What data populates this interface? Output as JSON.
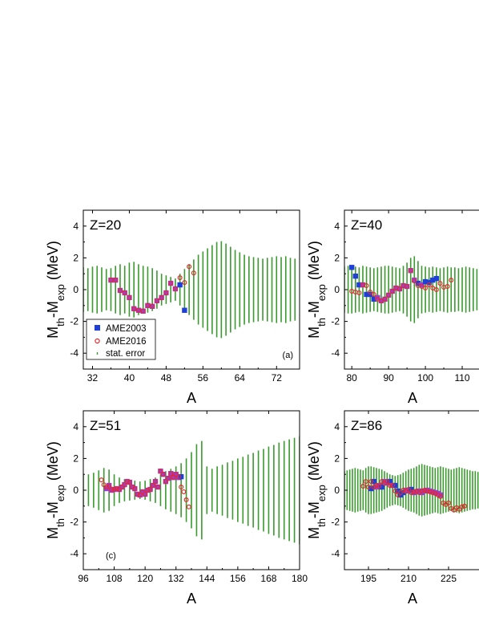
{
  "colors": {
    "ame2003": "#1f3fd6",
    "ame2016": "#e8262b",
    "stat_error": "#3a9a2e",
    "overlap_square": "#9b3fd0"
  },
  "legend": {
    "ame2003": "AME2003",
    "ame2016": "AME2016",
    "stat_error": "stat. error"
  },
  "chart_data": [
    {
      "type": "scatter",
      "panel_tag": "(a)",
      "z_label": "Z=20",
      "xlabel": "A",
      "ylabel": "M_th-M_exp (MeV)",
      "xlim": [
        30,
        77
      ],
      "ylim": [
        -5,
        5
      ],
      "xticks": [
        32,
        40,
        48,
        56,
        64,
        72
      ],
      "yticks": [
        -4,
        -2,
        0,
        2,
        4
      ],
      "series": [
        {
          "name": "AME2003",
          "x": [
            36,
            37,
            38,
            39,
            40,
            41,
            42,
            43,
            44,
            45,
            46,
            47,
            48,
            49,
            50,
            51,
            52
          ],
          "y": [
            0.6,
            0.6,
            -0.05,
            -0.2,
            -0.5,
            -1.2,
            -1.3,
            -1.35,
            -1.0,
            -1.05,
            -0.7,
            -0.5,
            -0.2,
            0.4,
            0.05,
            0.3,
            -1.3
          ]
        },
        {
          "name": "AME2016",
          "x": [
            36,
            37,
            38,
            39,
            40,
            41,
            42,
            43,
            44,
            45,
            46,
            47,
            48,
            49,
            50,
            51,
            52,
            53,
            54
          ],
          "y": [
            0.6,
            0.6,
            -0.05,
            -0.2,
            -0.5,
            -1.2,
            -1.3,
            -1.35,
            -1.0,
            -1.05,
            -0.7,
            -0.5,
            -0.2,
            0.4,
            0.05,
            0.75,
            0.45,
            1.45,
            1.05
          ]
        },
        {
          "name": "stat. error",
          "x": [
            30,
            31,
            32,
            33,
            34,
            35,
            36,
            37,
            38,
            39,
            40,
            41,
            42,
            43,
            44,
            45,
            46,
            47,
            48,
            49,
            50,
            51,
            52,
            53,
            54,
            55,
            56,
            57,
            58,
            59,
            60,
            61,
            62,
            63,
            64,
            65,
            66,
            67,
            68,
            69,
            70,
            71,
            72,
            73,
            74,
            75,
            76
          ],
          "y": [
            1.4,
            1.35,
            1.45,
            1.5,
            1.4,
            1.3,
            1.35,
            1.5,
            1.6,
            1.5,
            1.7,
            1.75,
            1.6,
            1.5,
            1.45,
            1.35,
            1.2,
            1.0,
            0.9,
            0.8,
            0.7,
            1.0,
            1.3,
            1.6,
            1.9,
            2.2,
            2.4,
            2.6,
            2.8,
            3.0,
            3.05,
            2.9,
            2.7,
            2.5,
            2.35,
            2.2,
            2.1,
            2.05,
            2.0,
            1.95,
            2.0,
            2.05,
            2.1,
            2.05,
            2.1,
            2.0,
            1.95
          ]
        }
      ]
    },
    {
      "type": "scatter",
      "panel_tag": "",
      "z_label": "Z=40",
      "xlabel": "A",
      "ylabel": "M_th-M_exp (MeV)",
      "xlim": [
        78,
        115
      ],
      "ylim": [
        -5,
        5
      ],
      "xticks": [
        80,
        90,
        100,
        110
      ],
      "yticks": [
        -4,
        -2,
        0,
        2,
        4
      ],
      "series": [
        {
          "name": "AME2003",
          "x": [
            80,
            81,
            82,
            83,
            84,
            85,
            86,
            87,
            88,
            89,
            90,
            91,
            92,
            93,
            94,
            95,
            96,
            97,
            98,
            99,
            100,
            101,
            102,
            103
          ],
          "y": [
            1.4,
            0.85,
            0.3,
            0.3,
            -0.3,
            -0.3,
            -0.6,
            -0.5,
            -0.7,
            -0.6,
            -0.35,
            -0.1,
            0.1,
            0.05,
            0.25,
            0.2,
            1.2,
            0.6,
            0.4,
            0.3,
            0.5,
            0.45,
            0.6,
            0.7
          ]
        },
        {
          "name": "AME2016",
          "x": [
            80,
            81,
            82,
            83,
            84,
            85,
            86,
            87,
            88,
            89,
            90,
            91,
            92,
            93,
            94,
            95,
            96,
            97,
            98,
            99,
            100,
            101,
            102,
            103,
            104,
            105,
            106,
            107
          ],
          "y": [
            -0.1,
            -0.15,
            -0.2,
            0.3,
            0.25,
            -0.15,
            -0.3,
            -0.6,
            -0.7,
            -0.6,
            -0.35,
            -0.1,
            0.1,
            0.05,
            0.25,
            0.2,
            1.2,
            0.55,
            0.25,
            0.2,
            0.1,
            0.3,
            0.1,
            0.0,
            0.4,
            0.15,
            0.2,
            0.6
          ]
        },
        {
          "name": "stat. error",
          "x": [
            78,
            79,
            80,
            81,
            82,
            83,
            84,
            85,
            86,
            87,
            88,
            89,
            90,
            91,
            92,
            93,
            94,
            95,
            96,
            97,
            98,
            99,
            100,
            101,
            102,
            103,
            104,
            105,
            106,
            107,
            108,
            109,
            110,
            111,
            112,
            113,
            114,
            115
          ],
          "y": [
            1.45,
            1.5,
            1.5,
            1.45,
            1.4,
            1.5,
            1.45,
            1.4,
            1.35,
            1.4,
            1.45,
            1.5,
            1.5,
            1.45,
            1.4,
            1.35,
            1.5,
            1.7,
            2.0,
            2.1,
            1.8,
            1.5,
            1.45,
            1.4,
            1.45,
            1.4,
            1.35,
            1.4,
            1.45,
            1.4,
            1.4,
            1.35,
            1.4,
            1.45,
            1.4,
            1.35,
            1.3,
            1.25
          ]
        }
      ]
    },
    {
      "type": "scatter",
      "panel_tag": "(c)",
      "z_label": "Z=51",
      "xlabel": "A",
      "ylabel": "M_th-M_exp (MeV)",
      "xlim": [
        96,
        180
      ],
      "ylim": [
        -5,
        5
      ],
      "xticks": [
        96,
        108,
        120,
        132,
        144,
        156,
        168,
        180
      ],
      "yticks": [
        -4,
        -2,
        0,
        2,
        4
      ],
      "series": [
        {
          "name": "AME2003",
          "x": [
            105,
            106,
            107,
            108,
            109,
            110,
            111,
            112,
            113,
            114,
            115,
            116,
            117,
            118,
            119,
            120,
            121,
            122,
            123,
            124,
            125,
            126,
            127,
            128,
            129,
            130,
            131,
            132,
            133,
            134
          ],
          "y": [
            0.1,
            0.3,
            0.0,
            0.05,
            0.1,
            0.05,
            0.2,
            0.35,
            0.55,
            0.5,
            0.2,
            0.1,
            -0.25,
            -0.3,
            -0.1,
            -0.25,
            0.0,
            0.05,
            0.3,
            0.55,
            0.2,
            1.2,
            1.0,
            0.55,
            0.75,
            1.05,
            0.8,
            1.0,
            0.8,
            0.85
          ]
        },
        {
          "name": "AME2016",
          "x": [
            103,
            104,
            105,
            106,
            107,
            108,
            109,
            110,
            111,
            112,
            113,
            114,
            115,
            116,
            117,
            118,
            119,
            120,
            121,
            122,
            123,
            124,
            125,
            126,
            127,
            128,
            129,
            130,
            131,
            132,
            133,
            134,
            135,
            136,
            137
          ],
          "y": [
            0.65,
            0.35,
            0.2,
            0.25,
            0.05,
            0.05,
            0.1,
            0.05,
            0.2,
            0.35,
            0.55,
            0.5,
            0.2,
            0.1,
            -0.25,
            -0.3,
            -0.1,
            -0.25,
            0.0,
            0.05,
            0.3,
            0.55,
            0.2,
            1.2,
            1.0,
            0.55,
            0.75,
            1.05,
            0.8,
            1.0,
            0.85,
            0.2,
            -0.1,
            -0.6,
            -1.05
          ]
        },
        {
          "name": "stat. error",
          "x": [
            96,
            98,
            100,
            102,
            104,
            106,
            108,
            110,
            112,
            114,
            116,
            118,
            120,
            122,
            124,
            126,
            128,
            130,
            132,
            134,
            136,
            138,
            140,
            142,
            144,
            146,
            148,
            150,
            152,
            154,
            156,
            158,
            160,
            162,
            164,
            166,
            168,
            170,
            172,
            174,
            176,
            178,
            180
          ],
          "y": [
            1.0,
            1.0,
            1.1,
            1.25,
            1.4,
            1.3,
            1.0,
            0.8,
            0.7,
            0.65,
            0.6,
            0.55,
            0.6,
            0.7,
            0.8,
            1.0,
            1.2,
            1.35,
            1.5,
            1.7,
            2.0,
            2.4,
            2.9,
            3.1,
            1.5,
            1.35,
            1.5,
            1.6,
            1.75,
            1.85,
            2.0,
            2.1,
            2.25,
            2.35,
            2.5,
            2.6,
            2.75,
            2.85,
            3.0,
            3.1,
            3.2,
            3.3,
            3.4
          ]
        }
      ]
    },
    {
      "type": "scatter",
      "panel_tag": "",
      "z_label": "Z=86",
      "xlabel": "A",
      "ylabel": "M_th-M_exp (MeV)",
      "xlim": [
        186,
        237
      ],
      "ylim": [
        -5,
        5
      ],
      "xticks": [
        195,
        210,
        225
      ],
      "yticks": [
        -4,
        -2,
        0,
        2,
        4
      ],
      "series": [
        {
          "name": "AME2003",
          "x": [
            196,
            197,
            198,
            199,
            200,
            201,
            202,
            203,
            204,
            205,
            206,
            207,
            208,
            209,
            210,
            211,
            212,
            213,
            214,
            215,
            216,
            217,
            218,
            219,
            220,
            221,
            222
          ],
          "y": [
            0.1,
            0.55,
            0.2,
            0.3,
            0.2,
            0.55,
            0.45,
            0.55,
            0.3,
            0.3,
            -0.05,
            -0.3,
            -0.15,
            0.0,
            -0.05,
            0.05,
            -0.15,
            -0.1,
            -0.05,
            -0.15,
            -0.05,
            0.0,
            -0.05,
            -0.1,
            -0.15,
            -0.2,
            -0.3
          ]
        },
        {
          "name": "AME2016",
          "x": [
            193,
            194,
            195,
            196,
            197,
            198,
            199,
            200,
            201,
            202,
            203,
            204,
            205,
            206,
            207,
            208,
            209,
            210,
            211,
            212,
            213,
            214,
            215,
            216,
            217,
            218,
            219,
            220,
            221,
            222,
            223,
            224,
            225,
            226,
            227,
            228,
            229,
            230,
            231
          ],
          "y": [
            0.25,
            0.55,
            0.2,
            0.55,
            0.2,
            0.3,
            0.25,
            0.55,
            0.45,
            0.55,
            0.3,
            0.3,
            -0.05,
            -0.3,
            -0.15,
            0.0,
            -0.05,
            0.05,
            -0.15,
            -0.1,
            -0.05,
            -0.15,
            -0.05,
            0.0,
            -0.05,
            -0.1,
            -0.15,
            -0.2,
            -0.3,
            -0.4,
            -0.8,
            -0.9,
            -0.8,
            -1.15,
            -1.25,
            -1.1,
            -1.2,
            -1.05,
            -1.0
          ]
        },
        {
          "name": "stat. error",
          "x": [
            186,
            187,
            188,
            189,
            190,
            191,
            192,
            193,
            194,
            195,
            196,
            197,
            198,
            199,
            200,
            201,
            202,
            203,
            204,
            205,
            206,
            207,
            208,
            209,
            210,
            211,
            212,
            213,
            214,
            215,
            216,
            217,
            218,
            219,
            220,
            221,
            222,
            223,
            224,
            225,
            226,
            227,
            228,
            229,
            230,
            231,
            232,
            233,
            234,
            235,
            236,
            237
          ],
          "y": [
            1.2,
            1.25,
            1.3,
            1.35,
            1.4,
            1.35,
            1.3,
            1.25,
            1.4,
            1.5,
            1.5,
            1.45,
            1.4,
            1.35,
            1.3,
            1.2,
            1.1,
            1.0,
            0.95,
            0.9,
            0.95,
            1.0,
            1.1,
            1.2,
            1.3,
            1.35,
            1.4,
            1.5,
            1.6,
            1.65,
            1.6,
            1.55,
            1.5,
            1.45,
            1.4,
            1.45,
            1.5,
            1.45,
            1.4,
            1.35,
            1.3,
            1.35,
            1.4,
            1.45,
            1.4,
            1.35,
            1.3,
            1.25,
            1.2,
            1.2,
            1.15,
            1.1
          ]
        }
      ]
    }
  ]
}
